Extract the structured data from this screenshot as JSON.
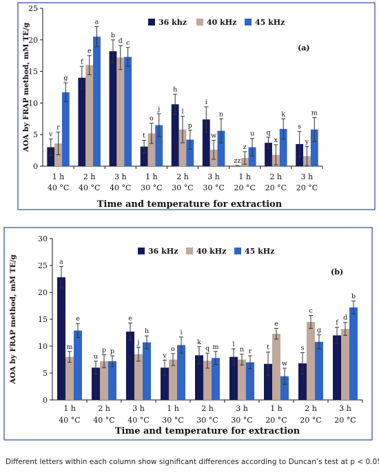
{
  "charts": [
    {
      "panel": "a",
      "type": "bar",
      "panel_label": "(a)",
      "xlabel": "Time and temperature for extraction",
      "ylabel": "AOA by FRAP method, mM TE/g",
      "ylim": [
        0,
        25
      ],
      "yticks": [
        0,
        5,
        10,
        15,
        20,
        25
      ],
      "categories": [
        [
          "1 h",
          "40 °C"
        ],
        [
          "2 h",
          "40 °C"
        ],
        [
          "3 h",
          "40 °C"
        ],
        [
          "1 h",
          "30 °C"
        ],
        [
          "2 h",
          "30 °C"
        ],
        [
          "3 h",
          "30 °C"
        ],
        [
          "1 h",
          "20 °C"
        ],
        [
          "2 h",
          "20 °C"
        ],
        [
          "3 h",
          "20 °C"
        ]
      ],
      "legend_position": "top-right",
      "series": [
        {
          "name": "36 khz",
          "color": "#14195a",
          "values": [
            3.0,
            14.0,
            18.2,
            3.1,
            9.8,
            7.4,
            0.0,
            3.7,
            3.5
          ],
          "errors": [
            1.3,
            1.8,
            1.8,
            1.0,
            1.6,
            2.0,
            0.1,
            0.9,
            2.0
          ],
          "letters": [
            "v",
            "f",
            "b",
            "t",
            "h",
            "i",
            "zz",
            "q",
            "s"
          ]
        },
        {
          "name": "40 kHz",
          "color": "#c0a89a",
          "values": [
            3.6,
            16.0,
            17.2,
            5.2,
            5.8,
            2.6,
            1.3,
            1.8,
            1.6
          ],
          "errors": [
            1.8,
            1.5,
            1.9,
            1.6,
            2.1,
            1.5,
            1.0,
            1.6,
            1.5
          ],
          "letters": [
            "r",
            "e",
            "d",
            "o",
            "l",
            "w",
            "z",
            "x",
            "y"
          ]
        },
        {
          "name": "45 kHz",
          "color": "#2f66c7",
          "values": [
            11.7,
            20.5,
            17.3,
            6.5,
            4.2,
            5.6,
            3.0,
            5.9,
            5.8
          ],
          "errors": [
            1.5,
            1.6,
            1.5,
            1.8,
            1.5,
            1.9,
            1.4,
            1.6,
            1.9
          ],
          "letters": [
            "g",
            "a",
            "c",
            "j",
            "p",
            "n",
            "u",
            "k",
            "m"
          ]
        }
      ]
    },
    {
      "panel": "b",
      "type": "bar",
      "panel_label": "(b)",
      "xlabel": "Time and temperature for extraction",
      "ylabel": "AOA by FRAP method, mM TE/g",
      "ylim": [
        0,
        30
      ],
      "yticks": [
        0,
        5,
        10,
        15,
        20,
        25,
        30
      ],
      "categories": [
        [
          "1 h",
          "40 °C"
        ],
        [
          "2 h",
          "40 °C"
        ],
        [
          "3 h",
          "40 °C"
        ],
        [
          "1 h",
          "30 °C"
        ],
        [
          "2 h",
          "30 °C"
        ],
        [
          "3 h",
          "30 °C"
        ],
        [
          "1 h",
          "20 °C"
        ],
        [
          "2 h",
          "20 °C"
        ],
        [
          "3 h",
          "20 °C"
        ]
      ],
      "legend_position": "top-center",
      "series": [
        {
          "name": "36 kHz",
          "color": "#14195a",
          "values": [
            22.8,
            6.0,
            12.7,
            6.0,
            8.3,
            8.0,
            6.7,
            6.8,
            12.0
          ],
          "errors": [
            2.0,
            1.2,
            1.6,
            1.4,
            1.6,
            1.5,
            2.2,
            2.0,
            1.5
          ],
          "letters": [
            "a",
            "u",
            "e",
            "v",
            "k",
            "l",
            "t",
            "s",
            "f"
          ]
        },
        {
          "name": "40 kHz",
          "color": "#c0a89a",
          "values": [
            8.0,
            7.2,
            8.5,
            7.5,
            7.3,
            7.5,
            12.3,
            14.5,
            13.2
          ],
          "errors": [
            1.0,
            1.2,
            1.3,
            1.1,
            1.4,
            1.0,
            1.0,
            1.2,
            1.2
          ],
          "letters": [
            "m",
            "p",
            "j",
            "o",
            "q",
            "n",
            "e",
            "c",
            "d"
          ]
        },
        {
          "name": "45 kHz",
          "color": "#2f66c7",
          "values": [
            12.9,
            7.2,
            10.7,
            10.2,
            7.8,
            7.0,
            4.4,
            10.8,
            17.2
          ],
          "errors": [
            1.3,
            1.0,
            1.2,
            1.5,
            1.2,
            1.2,
            1.5,
            1.3,
            1.2
          ],
          "letters": [
            "e",
            "p",
            "h",
            "i",
            "m",
            "r",
            "w",
            "g",
            "b"
          ]
        }
      ]
    }
  ],
  "caption": "Different letters within each column show significant differences according to Duncan’s test at p < 0.05."
}
